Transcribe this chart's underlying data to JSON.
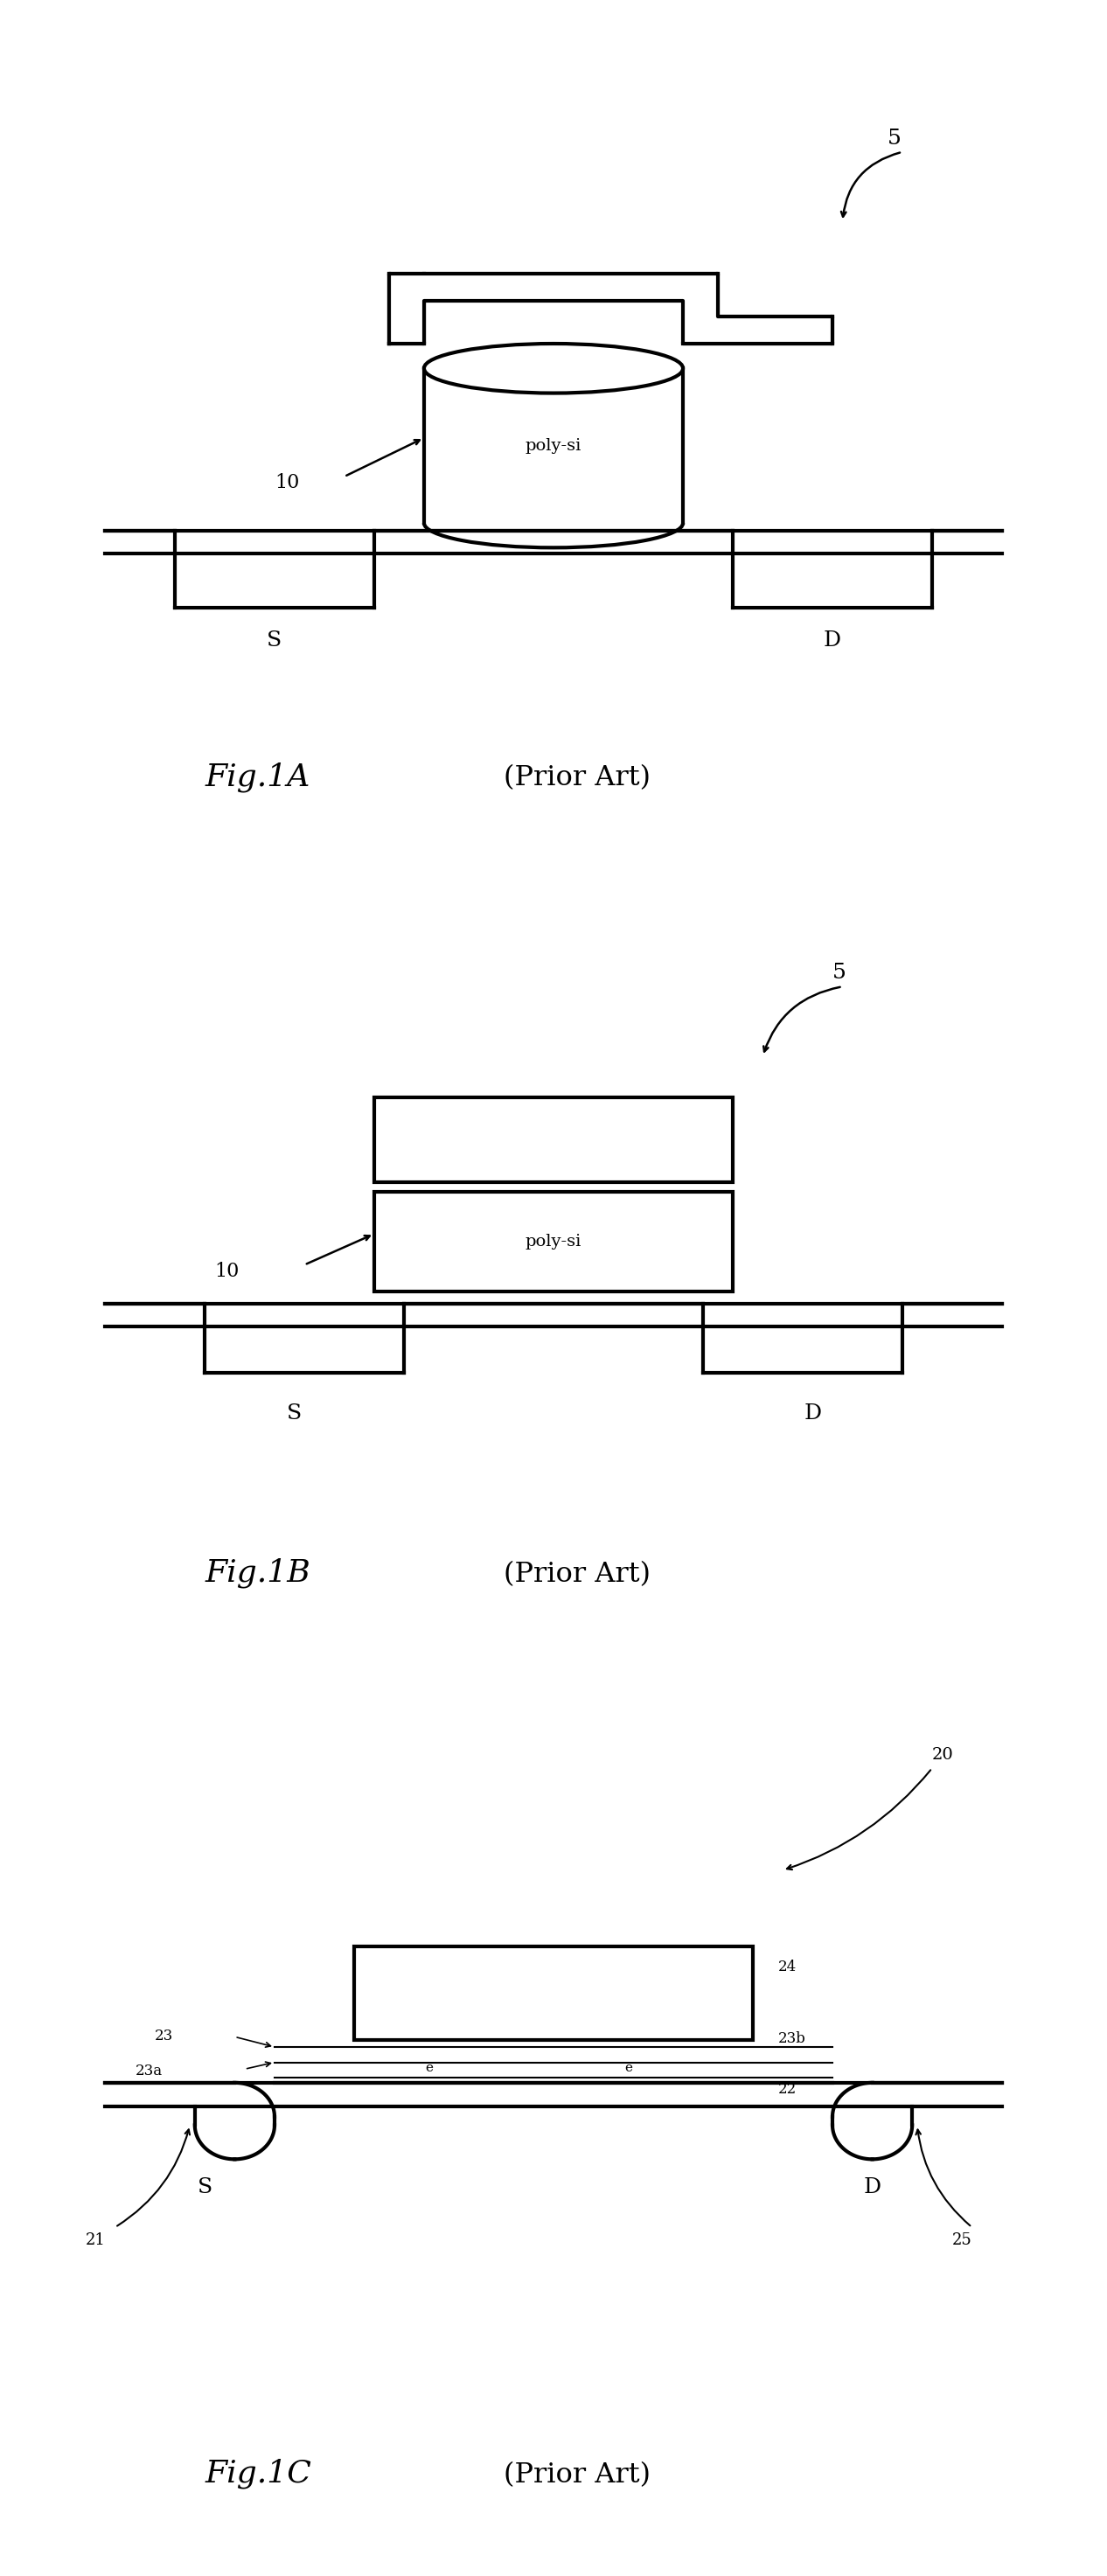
{
  "bg_color": "#ffffff",
  "line_color": "#000000",
  "lw_thick": 3.0,
  "lw_med": 2.0,
  "lw_thin": 1.5,
  "fig_width": 12.66,
  "fig_height": 29.46,
  "fig1a_label": "Fig.1A",
  "fig1b_label": "Fig.1B",
  "fig1c_label": "Fig.1C",
  "prior_art": "(Prior Art)"
}
